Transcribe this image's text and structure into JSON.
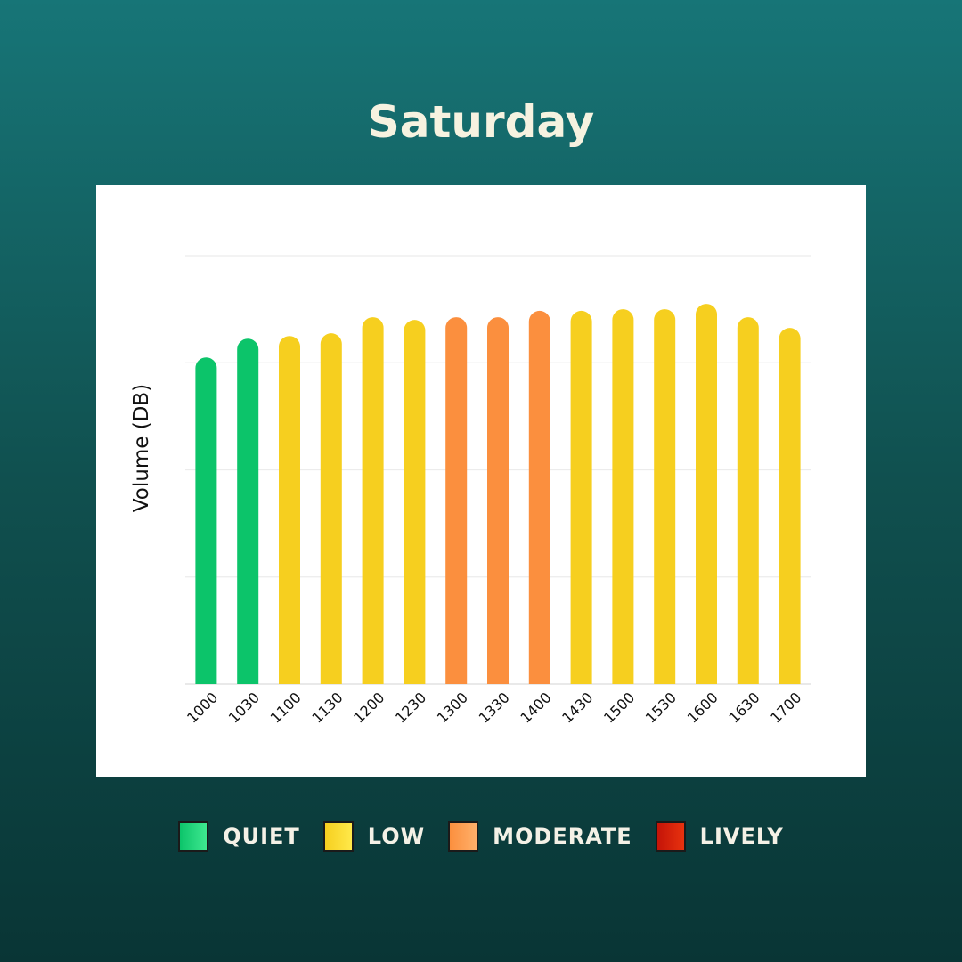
{
  "title": "Saturday",
  "legend": {
    "items": [
      {
        "label": "QUIET",
        "color": "#0cc46a",
        "color_light": "#3fe890"
      },
      {
        "label": "LOW",
        "color": "#f6cf1f",
        "color_light": "#ffe94a"
      },
      {
        "label": "MODERATE",
        "color": "#fb8f3e",
        "color_light": "#ffb06a"
      },
      {
        "label": "LIVELY",
        "color": "#c41408",
        "color_light": "#e8320e"
      }
    ]
  },
  "chart_data": {
    "type": "bar",
    "title": "Saturday",
    "xlabel": "",
    "ylabel": "Volume (DB)",
    "ylim": [
      0,
      80
    ],
    "grid": true,
    "categories": [
      "1000",
      "1030",
      "1100",
      "1130",
      "1200",
      "1230",
      "1300",
      "1330",
      "1400",
      "1430",
      "1500",
      "1530",
      "1600",
      "1630",
      "1700"
    ],
    "values": [
      61,
      64.5,
      65,
      65.5,
      68.5,
      68,
      68.5,
      68.5,
      69.7,
      69.7,
      70,
      70,
      71,
      68.5,
      66.5
    ],
    "levels": [
      "QUIET",
      "QUIET",
      "LOW",
      "LOW",
      "LOW",
      "LOW",
      "MODERATE",
      "MODERATE",
      "MODERATE",
      "LOW",
      "LOW",
      "LOW",
      "LOW",
      "LOW",
      "LOW"
    ],
    "legend_position": "bottom"
  }
}
